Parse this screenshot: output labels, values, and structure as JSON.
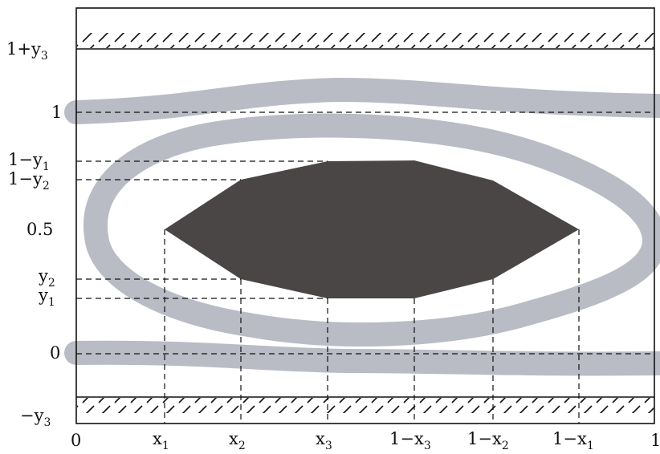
{
  "figure": {
    "y_labels": {
      "one_plus_y3": "1+y",
      "one_plus_y3_sub": "3",
      "one": "1",
      "one_minus_y1": "1−y",
      "one_minus_y1_sub": "1",
      "one_minus_y2": "1−y",
      "one_minus_y2_sub": "2",
      "half": "0.5",
      "y2": "y",
      "y2_sub": "2",
      "y1": "y",
      "y1_sub": "1",
      "zero": "0",
      "minus_y3": "−y",
      "minus_y3_sub": "3"
    },
    "x_labels": {
      "zero": "0",
      "x1": "x",
      "x1_sub": "1",
      "x2": "x",
      "x2_sub": "2",
      "x3": "x",
      "x3_sub": "3",
      "one_minus_x3": "1−x",
      "one_minus_x3_sub": "3",
      "one_minus_x2": "1−x",
      "one_minus_x2_sub": "2",
      "one_minus_x1": "1−x",
      "one_minus_x1_sub": "1",
      "one": "1"
    },
    "colors": {
      "eye_band": "#b9bcc5",
      "inner_polygon": "#4a4646",
      "lines": "#111111"
    }
  }
}
